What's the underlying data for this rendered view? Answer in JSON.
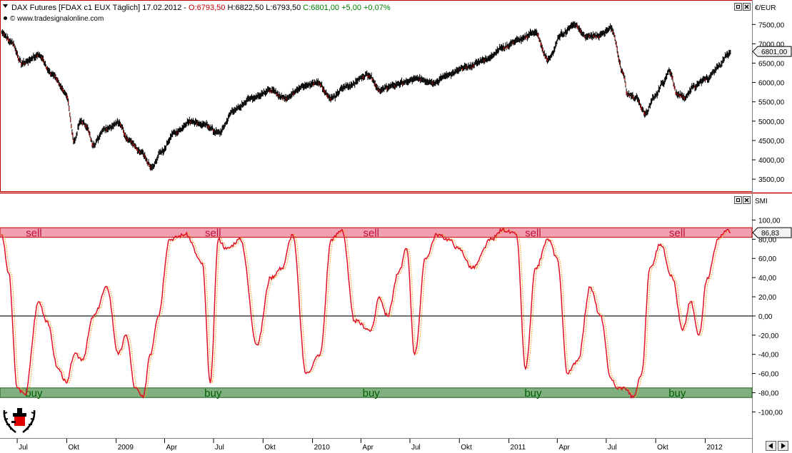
{
  "header": {
    "instrument": "DAX Futures [FDAX c1 EUX  Täglich] 17.02.2012 - ",
    "open": "O:6793,50",
    "high": " H:6822,50",
    "low": " L:6793,50",
    "close": " C:6801,00 +5,00 +0,07%",
    "watermark": "© www.tradesignalonline.com"
  },
  "colors": {
    "frame": "#c00000",
    "price_neg_change": "#c00000",
    "price_pos_change": "#008000",
    "sell_zone": "#f0a0b0",
    "buy_zone": "#80b080",
    "sell_text": "#c0103a",
    "buy_text": "#006000",
    "smi_line": "#e0102a",
    "smi_signal": "#f5a020",
    "zero_line": "#000000"
  },
  "chart_data": [
    {
      "type": "line",
      "name": "price",
      "chart_style": "ohlc-bars",
      "unit_label": "€/EUR",
      "last_value_label": "6801,00",
      "last_value": 6801,
      "ylim": [
        3300,
        7800
      ],
      "y_ticks": [
        3500,
        4000,
        4500,
        5000,
        5500,
        6000,
        6500,
        7000,
        7500
      ],
      "y_tick_labels": [
        "3500,00",
        "4000,00",
        "4500,00",
        "5000,00",
        "5500,00",
        "6000,00",
        "6500,00",
        "7000,00",
        "7500,00"
      ],
      "x": [
        "2008-06-02",
        "2008-06-20",
        "2008-07-10",
        "2008-08-10",
        "2008-09-05",
        "2008-09-30",
        "2008-10-15",
        "2008-10-27",
        "2008-11-05",
        "2008-11-20",
        "2008-12-10",
        "2009-01-06",
        "2009-01-25",
        "2009-02-15",
        "2009-03-09",
        "2009-03-25",
        "2009-04-20",
        "2009-05-20",
        "2009-06-15",
        "2009-07-10",
        "2009-08-10",
        "2009-09-10",
        "2009-10-15",
        "2009-11-10",
        "2009-12-15",
        "2010-01-10",
        "2010-02-05",
        "2010-03-05",
        "2010-04-15",
        "2010-05-07",
        "2010-05-25",
        "2010-06-20",
        "2010-07-15",
        "2010-08-15",
        "2010-09-10",
        "2010-10-15",
        "2010-11-20",
        "2010-12-20",
        "2011-01-20",
        "2011-02-18",
        "2011-03-15",
        "2011-04-10",
        "2011-05-02",
        "2011-05-25",
        "2011-06-15",
        "2011-07-10",
        "2011-08-03",
        "2011-08-09",
        "2011-08-25",
        "2011-09-12",
        "2011-09-28",
        "2011-10-15",
        "2011-10-27",
        "2011-11-10",
        "2011-11-25",
        "2011-12-10",
        "2012-01-05",
        "2012-01-25",
        "2012-02-10",
        "2012-02-17"
      ],
      "values": [
        7300,
        7050,
        6500,
        6700,
        6200,
        5700,
        4500,
        5000,
        4900,
        4400,
        4800,
        4950,
        4500,
        4200,
        3800,
        4200,
        4700,
        5000,
        4900,
        4700,
        5300,
        5600,
        5800,
        5600,
        5900,
        6000,
        5600,
        5900,
        6200,
        5800,
        5900,
        6000,
        6100,
        6000,
        6200,
        6400,
        6600,
        6900,
        7100,
        7300,
        6600,
        7250,
        7500,
        7200,
        7200,
        7400,
        6200,
        5700,
        5600,
        5200,
        5600,
        6000,
        6300,
        5700,
        5600,
        5900,
        6100,
        6400,
        6700,
        6801
      ]
    },
    {
      "type": "line",
      "name": "SMI",
      "unit_label": "SMI",
      "last_value_label": "86,83",
      "last_value": 86.83,
      "ylim": [
        -125,
        110
      ],
      "y_ticks": [
        100,
        80,
        60,
        40,
        20,
        0,
        -20,
        -40,
        -60,
        -80,
        -100
      ],
      "y_tick_labels": [
        "100,00",
        "80,00",
        "60,00",
        "40,00",
        "20,00",
        "0,00",
        "-20,00",
        "-40,00",
        "-60,00",
        "-80,00",
        "-100,00"
      ],
      "zones": {
        "sell": {
          "from": 82,
          "to": 92,
          "label": "sell"
        },
        "buy": {
          "from": -85,
          "to": -75,
          "label": "buy"
        }
      },
      "sell_label_dates": [
        "2008-08-01",
        "2009-06-30",
        "2010-04-20",
        "2011-02-15",
        "2011-11-10"
      ],
      "buy_label_dates": [
        "2008-08-01",
        "2009-06-30",
        "2010-04-20",
        "2011-02-15",
        "2011-11-10"
      ],
      "x": [
        "2008-06-02",
        "2008-06-15",
        "2008-07-01",
        "2008-07-15",
        "2008-08-10",
        "2008-08-25",
        "2008-09-15",
        "2008-10-01",
        "2008-10-15",
        "2008-10-30",
        "2008-11-20",
        "2008-12-15",
        "2009-01-05",
        "2009-01-20",
        "2009-02-05",
        "2009-02-20",
        "2009-03-05",
        "2009-03-20",
        "2009-04-10",
        "2009-05-10",
        "2009-06-10",
        "2009-06-25",
        "2009-07-10",
        "2009-07-25",
        "2009-08-20",
        "2009-09-20",
        "2009-10-15",
        "2009-11-05",
        "2009-11-25",
        "2009-12-20",
        "2010-01-15",
        "2010-02-05",
        "2010-02-25",
        "2010-03-20",
        "2010-04-20",
        "2010-05-05",
        "2010-05-20",
        "2010-06-10",
        "2010-06-25",
        "2010-07-10",
        "2010-07-30",
        "2010-08-20",
        "2010-09-10",
        "2010-09-30",
        "2010-10-25",
        "2010-11-30",
        "2010-12-20",
        "2011-01-15",
        "2011-02-01",
        "2011-02-20",
        "2011-03-15",
        "2011-04-01",
        "2011-04-20",
        "2011-05-10",
        "2011-06-01",
        "2011-06-20",
        "2011-07-10",
        "2011-07-20",
        "2011-08-05",
        "2011-08-20",
        "2011-09-05",
        "2011-09-20",
        "2011-10-10",
        "2011-11-01",
        "2011-11-20",
        "2011-12-05",
        "2011-12-20",
        "2012-01-05",
        "2012-01-25",
        "2012-02-10",
        "2012-02-17"
      ],
      "values": [
        85,
        45,
        -75,
        -82,
        15,
        -5,
        -55,
        -70,
        -40,
        -45,
        0,
        30,
        -40,
        -20,
        -75,
        -85,
        -40,
        0,
        80,
        85,
        55,
        -70,
        80,
        70,
        80,
        -30,
        40,
        50,
        85,
        -60,
        -40,
        80,
        90,
        -5,
        -15,
        20,
        0,
        45,
        70,
        -40,
        60,
        85,
        80,
        70,
        50,
        80,
        90,
        85,
        -55,
        50,
        80,
        60,
        -60,
        -45,
        30,
        0,
        -65,
        -75,
        -75,
        -85,
        -60,
        50,
        75,
        40,
        -15,
        15,
        -20,
        40,
        80,
        90,
        86.83
      ]
    }
  ],
  "x_axis": {
    "labels": [
      {
        "date": "2008-07-01",
        "text": "Jul"
      },
      {
        "date": "2008-10-01",
        "text": "Okt"
      },
      {
        "date": "2009-01-01",
        "text": "2009"
      },
      {
        "date": "2009-04-01",
        "text": "Apr"
      },
      {
        "date": "2009-07-01",
        "text": "Jul"
      },
      {
        "date": "2009-10-01",
        "text": "Okt"
      },
      {
        "date": "2010-01-01",
        "text": "2010"
      },
      {
        "date": "2010-04-01",
        "text": "Apr"
      },
      {
        "date": "2010-07-01",
        "text": "Jul"
      },
      {
        "date": "2010-10-01",
        "text": "Okt"
      },
      {
        "date": "2011-01-01",
        "text": "2011"
      },
      {
        "date": "2011-04-01",
        "text": "Apr"
      },
      {
        "date": "2011-07-01",
        "text": "Jul"
      },
      {
        "date": "2011-10-01",
        "text": "Okt"
      },
      {
        "date": "2012-01-01",
        "text": "2012"
      }
    ]
  },
  "icons": [
    "pane-restore-icon",
    "pane-close-icon",
    "scroll-left-icon",
    "scroll-right-icon",
    "laurel-logo-icon"
  ]
}
